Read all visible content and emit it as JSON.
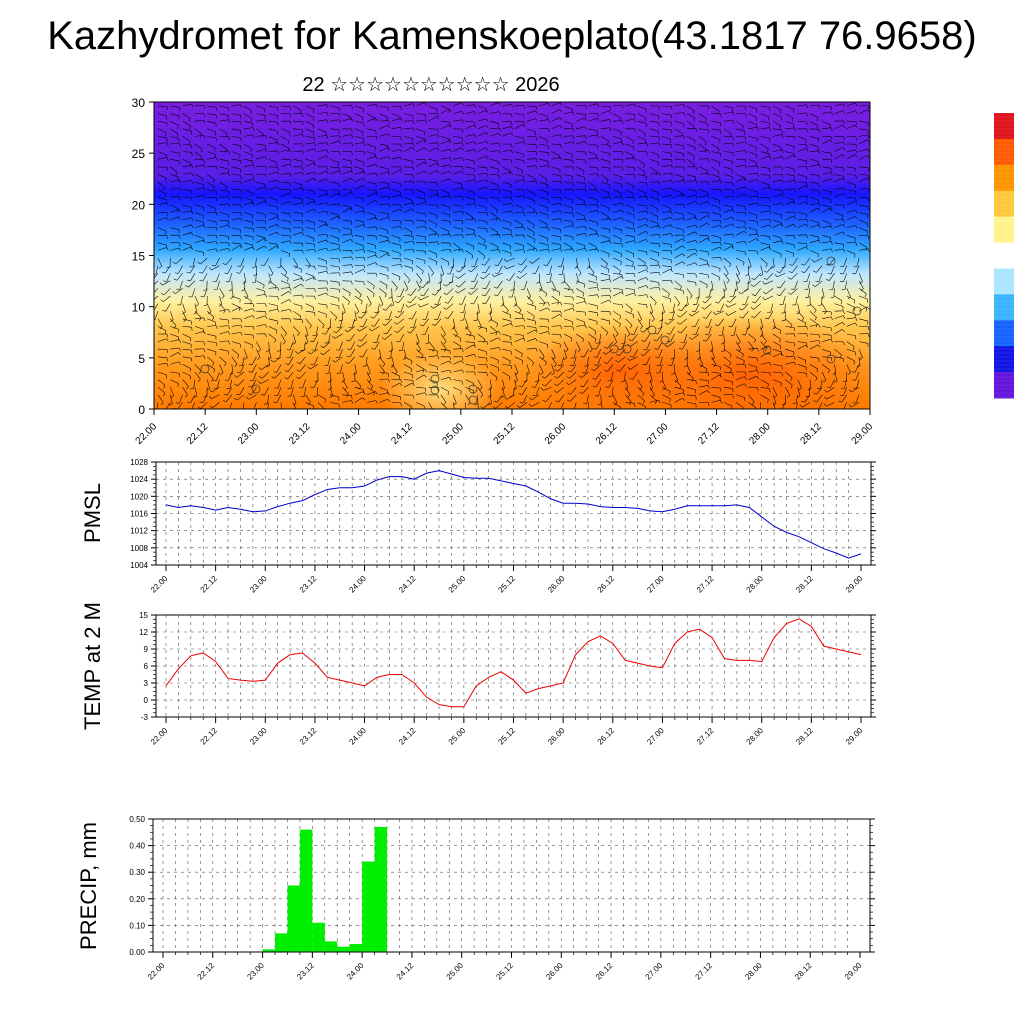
{
  "title": "Kazhydromet for Kamenskoeplato(43.1817 76.9658)",
  "subtitle": "22 ☆☆☆☆☆☆☆☆☆☆ 2026",
  "time_ticks": [
    "22.00",
    "22.12",
    "23.00",
    "23.12",
    "24.00",
    "24.12",
    "25.00",
    "25.12",
    "26.00",
    "26.12",
    "27.00",
    "27.12",
    "28.00",
    "28.12",
    "29.00"
  ],
  "chart_data": [
    {
      "type": "heatmap",
      "panel": "temperature-wind-profile",
      "y_ticks": [
        "0",
        "5",
        "10",
        "15",
        "20",
        "25",
        "30"
      ],
      "ylim": [
        0,
        30
      ],
      "colorbar_colors": [
        "#e0141e",
        "#ff5a00",
        "#ff9600",
        "#ffc83c",
        "#fff48c",
        "#ffffff",
        "#aae6ff",
        "#3cb4ff",
        "#1464ff",
        "#1414e6",
        "#6414dc"
      ]
    },
    {
      "type": "line",
      "panel": "pmsl",
      "ylabel": "PMSL",
      "ylim": [
        1004,
        1028
      ],
      "y_ticks": [
        "1004",
        "1008",
        "1012",
        "1016",
        "1020",
        "1024",
        "1028"
      ],
      "color": "#0000cc",
      "x": [
        22.0,
        22.125,
        22.25,
        22.375,
        22.5,
        22.625,
        22.75,
        22.875,
        23.0,
        23.125,
        23.25,
        23.375,
        23.5,
        23.625,
        23.75,
        23.875,
        24.0,
        24.125,
        24.25,
        24.375,
        24.5,
        24.625,
        24.75,
        24.875,
        25.0,
        25.125,
        25.25,
        25.375,
        25.5,
        25.625,
        25.75,
        25.875,
        26.0,
        26.125,
        26.25,
        26.375,
        26.5,
        26.625,
        26.75,
        26.875,
        27.0,
        27.125,
        27.25,
        27.375,
        27.5,
        27.625,
        27.75,
        27.875,
        28.0,
        28.125,
        28.25,
        28.375,
        28.5,
        28.625,
        28.75,
        28.875,
        29.0
      ],
      "values": [
        1018,
        1017.4,
        1017.8,
        1017.4,
        1016.8,
        1017.4,
        1017.0,
        1016.4,
        1016.6,
        1017.6,
        1018.4,
        1019.0,
        1020.4,
        1021.6,
        1022.0,
        1022.0,
        1022.4,
        1023.8,
        1024.6,
        1024.6,
        1024.0,
        1025.4,
        1026.0,
        1025.2,
        1024.4,
        1024.2,
        1024.2,
        1023.6,
        1023.0,
        1022.4,
        1021.0,
        1019.4,
        1018.4,
        1018.4,
        1018.2,
        1017.6,
        1017.4,
        1017.4,
        1017.2,
        1016.6,
        1016.4,
        1017.0,
        1017.8,
        1017.8,
        1017.8,
        1017.8,
        1018.0,
        1017.4,
        1015.2,
        1013.0,
        1011.6,
        1010.6,
        1009.2,
        1007.8,
        1006.8,
        1005.6,
        1006.6
      ]
    },
    {
      "type": "line",
      "panel": "temp2m",
      "ylabel": "TEMP at 2 M",
      "ylim": [
        -3,
        15
      ],
      "y_ticks": [
        "-3",
        "0",
        "3",
        "6",
        "9",
        "12",
        "15"
      ],
      "color": "#ee0000",
      "x": [
        22.0,
        22.125,
        22.25,
        22.375,
        22.5,
        22.625,
        22.75,
        22.875,
        23.0,
        23.125,
        23.25,
        23.375,
        23.5,
        23.625,
        23.75,
        23.875,
        24.0,
        24.125,
        24.25,
        24.375,
        24.5,
        24.625,
        24.75,
        24.875,
        25.0,
        25.125,
        25.25,
        25.375,
        25.5,
        25.625,
        25.75,
        25.875,
        26.0,
        26.125,
        26.25,
        26.375,
        26.5,
        26.625,
        26.75,
        26.875,
        27.0,
        27.125,
        27.25,
        27.375,
        27.5,
        27.625,
        27.75,
        27.875,
        28.0,
        28.125,
        28.25,
        28.375,
        28.5,
        28.625,
        28.75,
        28.875,
        29.0
      ],
      "values": [
        2.5,
        5.5,
        7.8,
        8.3,
        6.8,
        3.8,
        3.5,
        3.3,
        3.5,
        6.5,
        8.0,
        8.3,
        6.5,
        4.0,
        3.5,
        3.0,
        2.5,
        4.0,
        4.5,
        4.5,
        3.0,
        0.5,
        -0.8,
        -1.2,
        -1.2,
        2.5,
        4.0,
        5.0,
        3.5,
        1.2,
        2.0,
        2.5,
        3.0,
        8.0,
        10.3,
        11.3,
        10.0,
        7.0,
        6.5,
        6.0,
        5.7,
        10.0,
        12.0,
        12.5,
        11.0,
        7.3,
        7.0,
        7.0,
        6.8,
        11.0,
        13.5,
        14.3,
        13.0,
        9.5,
        9.0,
        8.5,
        8.0
      ]
    },
    {
      "type": "bar",
      "panel": "precip",
      "ylabel": "PRECIP, mm",
      "ylim": [
        0,
        0.5
      ],
      "y_ticks": [
        "0.00",
        "0.10",
        "0.20",
        "0.30",
        "0.40",
        "0.50"
      ],
      "color": "#00ee00",
      "x": [
        23.125,
        23.25,
        23.375,
        23.5,
        23.625,
        23.75,
        23.875,
        24.0,
        24.125,
        24.25,
        24.375,
        24.5
      ],
      "values": [
        0.01,
        0.07,
        0.25,
        0.46,
        0.11,
        0.04,
        0.02,
        0.03,
        0.34,
        0.47,
        0.0,
        0.0
      ]
    }
  ]
}
